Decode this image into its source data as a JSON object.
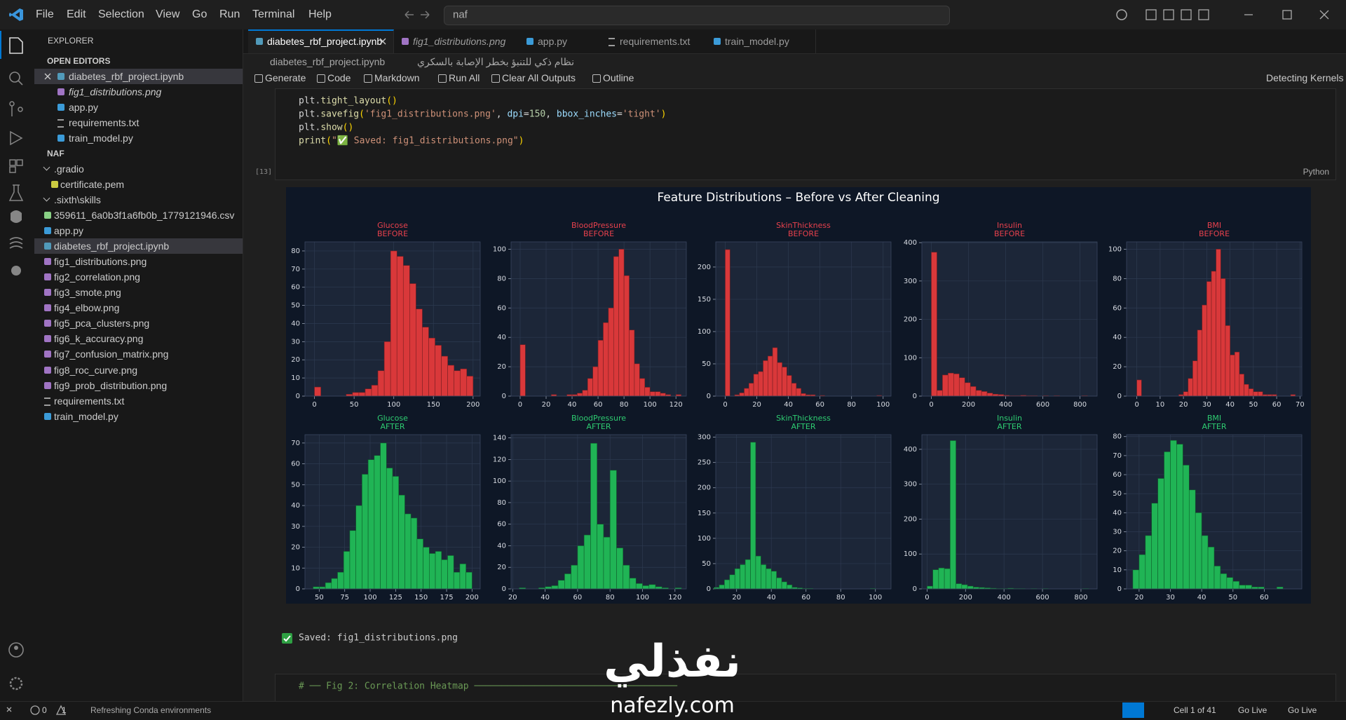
{
  "menu": [
    "File",
    "Edit",
    "Selection",
    "View",
    "Go",
    "Run",
    "Terminal",
    "Help"
  ],
  "search": "naf",
  "explorer": {
    "title": "EXPLORER",
    "open_editors_title": "OPEN EDITORS",
    "open_editors": [
      "diabetes_rbf_project.ipynb",
      "fig1_distributions.png",
      "app.py",
      "requirements.txt",
      "train_model.py"
    ],
    "folder": "NAF",
    "files": [
      ".gradio",
      "certificate.pem",
      ".sixth\\skills",
      "359611_6a0b3f1a6fb0b_1779121946.csv",
      "app.py",
      "diabetes_rbf_project.ipynb",
      "fig1_distributions.png",
      "fig2_correlation.png",
      "fig3_smote.png",
      "fig4_elbow.png",
      "fig5_pca_clusters.png",
      "fig6_k_accuracy.png",
      "fig7_confusion_matrix.png",
      "fig8_roc_curve.png",
      "fig9_prob_distribution.png",
      "requirements.txt",
      "train_model.py"
    ]
  },
  "tabs": [
    "diabetes_rbf_project.ipynb",
    "fig1_distributions.png",
    "app.py",
    "requirements.txt",
    "train_model.py"
  ],
  "breadcrumb": {
    "file": "diabetes_rbf_project.ipynb",
    "section": "نظام ذكي للتنبؤ بخطر الإصابة بالسكري"
  },
  "toolbar": {
    "items": [
      "Generate",
      "Code",
      "Markdown",
      "Run All",
      "Clear All Outputs",
      "Outline"
    ],
    "kernel": "Detecting Kernels"
  },
  "cell": {
    "lines": [
      [
        {
          "text": "plt.",
          "color": "#d4d4d4"
        },
        {
          "text": "tight_layout",
          "color": "#dcdcaa"
        },
        {
          "text": "()",
          "color": "#ffd700"
        }
      ],
      [
        {
          "text": "plt.",
          "color": "#d4d4d4"
        },
        {
          "text": "savefig",
          "color": "#dcdcaa"
        },
        {
          "text": "(",
          "color": "#ffd700"
        },
        {
          "text": "'fig1_distributions.png'",
          "color": "#ce9178"
        },
        {
          "text": ", ",
          "color": "#d4d4d4"
        },
        {
          "text": "dpi",
          "color": "#9cdcfe"
        },
        {
          "text": "=",
          "color": "#d4d4d4"
        },
        {
          "text": "150",
          "color": "#b5cea8"
        },
        {
          "text": ", ",
          "color": "#d4d4d4"
        },
        {
          "text": "bbox_inches",
          "color": "#9cdcfe"
        },
        {
          "text": "=",
          "color": "#d4d4d4"
        },
        {
          "text": "'tight'",
          "color": "#ce9178"
        },
        {
          "text": ")",
          "color": "#ffd700"
        }
      ],
      [
        {
          "text": "plt.",
          "color": "#d4d4d4"
        },
        {
          "text": "show",
          "color": "#dcdcaa"
        },
        {
          "text": "()",
          "color": "#ffd700"
        }
      ],
      [
        {
          "text": "print",
          "color": "#dcdcaa"
        },
        {
          "text": "(",
          "color": "#ffd700"
        },
        {
          "text": "\"✅ Saved: fig1_distributions.png\"",
          "color": "#ce9178"
        },
        {
          "text": ")",
          "color": "#ffd700"
        }
      ]
    ],
    "count": "[13]",
    "language": "Python"
  },
  "figure": {
    "title": "Feature Distributions – Before vs After Cleaning"
  },
  "chart_data": [
    {
      "type": "histogram",
      "title": "Glucose",
      "subtitle": "BEFORE",
      "title_color": "#e8414d",
      "color": "#d9383a",
      "edgecolor": "#7a1f22",
      "grid": true,
      "bins": [
        0,
        8,
        16,
        24,
        32,
        40,
        48,
        56,
        64,
        72,
        80,
        88,
        96,
        104,
        112,
        120,
        128,
        136,
        144,
        152,
        160,
        168,
        176,
        184,
        192,
        200
      ],
      "values": [
        5,
        0,
        0,
        0,
        0,
        1,
        2,
        2,
        4,
        6,
        14,
        30,
        80,
        77,
        72,
        62,
        48,
        38,
        32,
        28,
        22,
        17,
        14,
        15,
        11
      ],
      "xlim": [
        -12,
        209
      ],
      "ylim": [
        0,
        85
      ],
      "xticks": [
        0,
        50,
        100,
        150,
        200
      ],
      "yticks": [
        0,
        10,
        20,
        30,
        40,
        50,
        60,
        70,
        80
      ]
    },
    {
      "type": "histogram",
      "title": "BloodPressure",
      "subtitle": "BEFORE",
      "title_color": "#e8414d",
      "color": "#d9383a",
      "edgecolor": "#7a1f22",
      "grid": true,
      "bins": [
        0,
        4,
        8,
        12,
        16,
        20,
        24,
        28,
        32,
        36,
        40,
        44,
        48,
        52,
        56,
        60,
        64,
        68,
        72,
        76,
        80,
        84,
        88,
        92,
        96,
        100,
        104,
        108,
        112,
        116,
        120,
        124
      ],
      "values": [
        35,
        0,
        0,
        0,
        0,
        0,
        1,
        0,
        0,
        1,
        1,
        2,
        4,
        12,
        20,
        38,
        50,
        60,
        95,
        100,
        82,
        45,
        22,
        12,
        6,
        3,
        3,
        2,
        1,
        0,
        1
      ],
      "xlim": [
        -7,
        128
      ],
      "ylim": [
        0,
        105
      ],
      "xticks": [
        0,
        20,
        40,
        60,
        80,
        100,
        120
      ],
      "yticks": [
        0,
        20,
        40,
        60,
        80,
        100
      ]
    },
    {
      "type": "histogram",
      "title": "SkinThickness",
      "subtitle": "BEFORE",
      "title_color": "#e8414d",
      "color": "#d9383a",
      "edgecolor": "#7a1f22",
      "grid": true,
      "bins": [
        0,
        3,
        6,
        9,
        12,
        15,
        18,
        21,
        24,
        27,
        30,
        33,
        36,
        39,
        42,
        45,
        48,
        51,
        54,
        57,
        60,
        63,
        66,
        69,
        72,
        75,
        78,
        81,
        84,
        87,
        90,
        93,
        96,
        99
      ],
      "values": [
        227,
        0,
        2,
        5,
        12,
        20,
        34,
        38,
        55,
        62,
        75,
        52,
        45,
        32,
        20,
        12,
        4,
        2,
        2,
        0,
        1,
        0,
        0,
        0,
        0,
        0,
        0,
        0,
        0,
        0,
        0,
        0,
        1
      ],
      "xlim": [
        -6,
        105
      ],
      "ylim": [
        0,
        239
      ],
      "xticks": [
        0,
        20,
        40,
        60,
        80,
        100
      ],
      "yticks": [
        0,
        50,
        100,
        150,
        200
      ]
    },
    {
      "type": "histogram",
      "title": "Insulin",
      "subtitle": "BEFORE",
      "title_color": "#e8414d",
      "color": "#d9383a",
      "edgecolor": "#7a1f22",
      "grid": true,
      "bins": [
        0,
        30,
        60,
        90,
        120,
        150,
        180,
        210,
        240,
        270,
        300,
        330,
        360,
        390,
        420,
        450,
        480,
        510,
        540,
        570,
        600,
        630,
        660,
        690,
        720,
        750,
        780,
        810,
        840
      ],
      "values": [
        375,
        15,
        55,
        60,
        58,
        48,
        35,
        25,
        15,
        12,
        8,
        5,
        4,
        2,
        1,
        1,
        2,
        1,
        1,
        0,
        1,
        0,
        1,
        0,
        0,
        0,
        0,
        1
      ],
      "xlim": [
        -51,
        892
      ],
      "ylim": [
        0,
        402
      ],
      "xticks": [
        0,
        200,
        400,
        600,
        800
      ],
      "yticks": [
        0,
        100,
        200,
        300,
        400
      ]
    },
    {
      "type": "histogram",
      "title": "BMI",
      "subtitle": "BEFORE",
      "title_color": "#e8414d",
      "color": "#d9383a",
      "edgecolor": "#7a1f22",
      "grid": true,
      "bins": [
        0,
        2,
        4,
        6,
        8,
        10,
        12,
        14,
        16,
        18,
        20,
        22,
        24,
        26,
        28,
        30,
        32,
        34,
        36,
        38,
        40,
        42,
        44,
        46,
        48,
        50,
        52,
        54,
        56,
        58,
        60,
        62,
        64,
        66,
        68
      ],
      "values": [
        11,
        0,
        0,
        0,
        0,
        0,
        0,
        0,
        0,
        1,
        3,
        12,
        24,
        45,
        62,
        78,
        85,
        100,
        80,
        48,
        28,
        30,
        15,
        8,
        5,
        3,
        3,
        1,
        1,
        1,
        0,
        0,
        0,
        1
      ],
      "xlim": [
        -4.4,
        70.8
      ],
      "ylim": [
        0,
        105
      ],
      "xticks": [
        0,
        10,
        20,
        30,
        40,
        50,
        60,
        70
      ],
      "yticks": [
        0,
        20,
        40,
        60,
        80,
        100
      ]
    },
    {
      "type": "histogram",
      "title": "Glucose",
      "subtitle": "AFTER",
      "title_color": "#2ecc71",
      "color": "#20b455",
      "edgecolor": "#0f5e2c",
      "grid": true,
      "bins": [
        44,
        50,
        56,
        62,
        68,
        74,
        80,
        86,
        92,
        98,
        104,
        110,
        116,
        122,
        128,
        134,
        140,
        146,
        152,
        158,
        164,
        170,
        176,
        182,
        188,
        194,
        200
      ],
      "values": [
        1,
        1,
        3,
        5,
        8,
        18,
        28,
        40,
        55,
        62,
        64,
        70,
        58,
        54,
        45,
        36,
        34,
        24,
        20,
        17,
        18,
        14,
        16,
        8,
        12,
        8
      ],
      "xlim": [
        36,
        208
      ],
      "ylim": [
        0,
        74
      ],
      "xticks": [
        50,
        75,
        100,
        125,
        150,
        175,
        200
      ],
      "yticks": [
        0,
        10,
        20,
        30,
        40,
        50,
        60,
        70
      ]
    },
    {
      "type": "histogram",
      "title": "BloodPressure",
      "subtitle": "AFTER",
      "title_color": "#2ecc71",
      "color": "#20b455",
      "edgecolor": "#0f5e2c",
      "grid": true,
      "bins": [
        24,
        28,
        32,
        36,
        40,
        44,
        48,
        52,
        56,
        60,
        64,
        68,
        72,
        76,
        80,
        84,
        88,
        92,
        96,
        100,
        104,
        108,
        112,
        116,
        120,
        124
      ],
      "values": [
        1,
        0,
        0,
        1,
        2,
        3,
        8,
        14,
        22,
        40,
        50,
        135,
        60,
        48,
        110,
        38,
        22,
        10,
        5,
        3,
        4,
        2,
        1,
        0,
        1
      ],
      "xlim": [
        19,
        127
      ],
      "ylim": [
        0,
        143
      ],
      "xticks": [
        20,
        40,
        60,
        80,
        100,
        120
      ],
      "yticks": [
        0,
        20,
        40,
        60,
        80,
        100,
        120,
        140
      ]
    },
    {
      "type": "histogram",
      "title": "SkinThickness",
      "subtitle": "AFTER",
      "title_color": "#2ecc71",
      "color": "#20b455",
      "edgecolor": "#0f5e2c",
      "grid": true,
      "bins": [
        7,
        10,
        13,
        16,
        19,
        22,
        25,
        28,
        31,
        34,
        37,
        40,
        43,
        46,
        49,
        52,
        55,
        58,
        61,
        64,
        67,
        70,
        73,
        76,
        79,
        82,
        85,
        88,
        91,
        94,
        97,
        100
      ],
      "values": [
        3,
        8,
        18,
        28,
        40,
        48,
        58,
        290,
        65,
        48,
        40,
        35,
        22,
        14,
        8,
        3,
        2,
        1,
        1,
        0,
        0,
        0,
        0,
        0,
        0,
        0,
        0,
        0,
        0,
        0,
        1
      ],
      "xlim": [
        8,
        109
      ],
      "ylim": [
        0,
        305
      ],
      "xticks": [
        20,
        40,
        60,
        80,
        100
      ],
      "yticks": [
        0,
        50,
        100,
        150,
        200,
        250,
        300
      ]
    },
    {
      "type": "histogram",
      "title": "Insulin",
      "subtitle": "AFTER",
      "title_color": "#2ecc71",
      "color": "#20b455",
      "edgecolor": "#0f5e2c",
      "grid": true,
      "bins": [
        0,
        30,
        60,
        90,
        120,
        150,
        180,
        210,
        240,
        270,
        300,
        330,
        360,
        390,
        420,
        450,
        480,
        510,
        540,
        570,
        600,
        630,
        660,
        690,
        720,
        750,
        780,
        810,
        840
      ],
      "values": [
        8,
        55,
        60,
        58,
        425,
        15,
        12,
        8,
        5,
        4,
        3,
        2,
        1,
        1,
        2,
        1,
        1,
        0,
        1,
        0,
        1,
        0,
        0,
        0,
        0,
        0,
        0,
        1
      ],
      "xlim": [
        -27,
        884
      ],
      "ylim": [
        0,
        442
      ],
      "xticks": [
        0,
        200,
        400,
        600,
        800
      ],
      "yticks": [
        0,
        100,
        200,
        300,
        400
      ]
    },
    {
      "type": "histogram",
      "title": "BMI",
      "subtitle": "AFTER",
      "title_color": "#2ecc71",
      "color": "#20b455",
      "edgecolor": "#0f5e2c",
      "grid": true,
      "bins": [
        18,
        20,
        22,
        24,
        26,
        28,
        30,
        32,
        34,
        36,
        38,
        40,
        42,
        44,
        46,
        48,
        50,
        52,
        54,
        56,
        58,
        60,
        62,
        64,
        66,
        68
      ],
      "values": [
        10,
        18,
        28,
        45,
        58,
        72,
        78,
        76,
        65,
        52,
        40,
        28,
        22,
        12,
        8,
        6,
        4,
        2,
        2,
        1,
        1,
        0,
        0,
        1,
        0
      ],
      "xlim": [
        16,
        72
      ],
      "ylim": [
        0,
        81
      ],
      "xticks": [
        20,
        30,
        40,
        50,
        60
      ],
      "yticks": [
        0,
        10,
        20,
        30,
        40,
        50,
        60,
        70,
        80
      ]
    }
  ],
  "output": "Saved: fig1_distributions.png",
  "next_cell": "# ── Fig 2: Correlation Heatmap ─────────────────────────────────────",
  "status": {
    "errors": "0",
    "warnings": "1",
    "message": "Refreshing Conda environments",
    "cell_position": "Cell 1 of 41",
    "live": [
      "Go Live",
      "Go Live"
    ]
  },
  "watermark": {
    "arabic": "نفذلي",
    "site": "nafezly.com"
  }
}
